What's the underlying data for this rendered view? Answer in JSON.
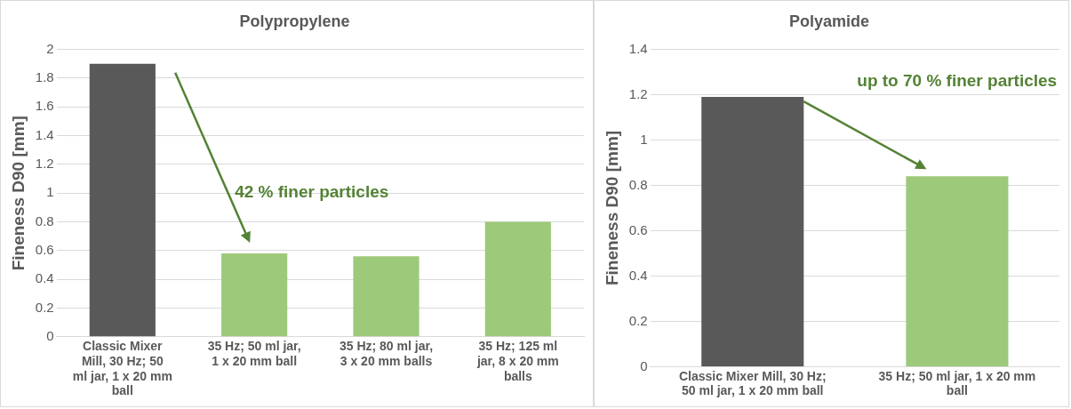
{
  "chart_data": [
    {
      "type": "bar",
      "title": "Polypropylene",
      "ylabel": "Fineness D90 [mm]",
      "categories": [
        "Classic Mixer Mill, 30 Hz; 50 ml jar, 1 x 20 mm ball",
        "35 Hz; 50 ml jar, 1 x 20 mm ball",
        "35 Hz; 80 ml jar, 3 x 20 mm balls",
        "35 Hz; 125 ml jar, 8 x 20 mm balls"
      ],
      "values": [
        1.9,
        0.58,
        0.56,
        0.8
      ],
      "colors": [
        "#595959",
        "#9dc97a",
        "#9dc97a",
        "#9dc97a"
      ],
      "ylim": [
        0,
        2
      ],
      "yticks": [
        0,
        0.2,
        0.4,
        0.6,
        0.8,
        1,
        1.2,
        1.4,
        1.6,
        1.8,
        2
      ],
      "grid": "y",
      "legend": false,
      "annotations": [
        "42 % finer particles"
      ]
    },
    {
      "type": "bar",
      "title": "Polyamide",
      "ylabel": "Fineness D90 [mm]",
      "categories": [
        "Classic Mixer Mill, 30 Hz; 50 ml jar, 1 x 20 mm ball",
        "35 Hz; 50 ml jar, 1 x 20 mm ball"
      ],
      "values": [
        1.19,
        0.84
      ],
      "colors": [
        "#595959",
        "#9dc97a"
      ],
      "ylim": [
        0,
        1.4
      ],
      "yticks": [
        0,
        0.2,
        0.4,
        0.6,
        0.8,
        1,
        1.2,
        1.4
      ],
      "grid": "y",
      "legend": false,
      "annotations": [
        "up to 70 % finer particles"
      ]
    }
  ]
}
